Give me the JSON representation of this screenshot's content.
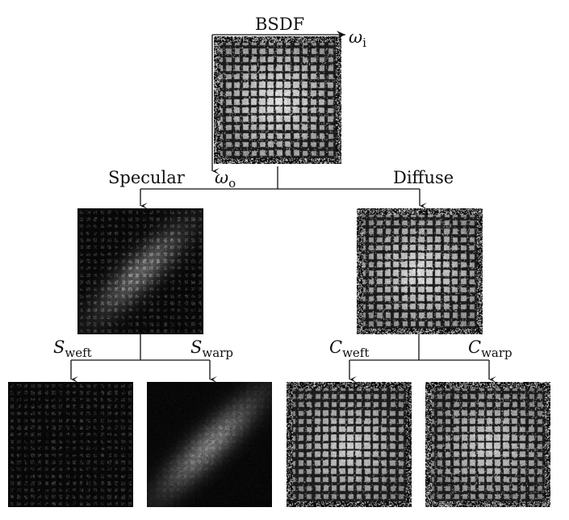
{
  "root": {
    "title": "BSDF",
    "axis_in": "ω",
    "axis_in_sub": "i",
    "axis_out": "ω",
    "axis_out_sub": "o"
  },
  "branches": {
    "specular": {
      "label": "Specular"
    },
    "diffuse": {
      "label": "Diffuse"
    }
  },
  "leaves": {
    "s_weft": {
      "symbol": "S",
      "sub": "weft"
    },
    "s_warp": {
      "symbol": "S",
      "sub": "warp"
    },
    "c_weft": {
      "symbol": "C",
      "sub": "weft"
    },
    "c_warp": {
      "symbol": "C",
      "sub": "warp"
    }
  }
}
